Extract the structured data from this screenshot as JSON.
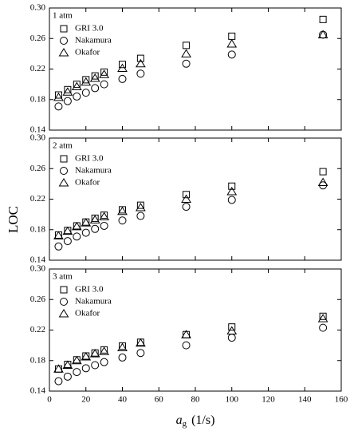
{
  "chart_data": [
    {
      "type": "scatter",
      "annotation": "1 atm",
      "xlim": [
        0,
        160
      ],
      "xticks": [
        0,
        20,
        40,
        60,
        80,
        100,
        120,
        140,
        160
      ],
      "ylim": [
        0.14,
        0.3
      ],
      "yticks": [
        0.14,
        0.18,
        0.22,
        0.26,
        {
          "value": 0.3,
          "label": "0.30"
        }
      ],
      "legend": "upper left",
      "series": [
        {
          "name": "GRI 3.0",
          "marker": "square",
          "color": "#000000",
          "x": [
            5,
            10,
            15,
            20,
            25,
            30,
            40,
            50,
            75,
            100,
            150
          ],
          "values": [
            0.186,
            0.193,
            0.2,
            0.206,
            0.211,
            0.216,
            0.226,
            0.234,
            0.251,
            0.263,
            0.285
          ]
        },
        {
          "name": "Nakamura",
          "marker": "circle",
          "color": "#000000",
          "x": [
            5,
            10,
            15,
            20,
            25,
            30,
            40,
            50,
            75,
            100,
            150
          ],
          "values": [
            0.171,
            0.178,
            0.184,
            0.189,
            0.195,
            0.2,
            0.207,
            0.214,
            0.227,
            0.239,
            0.265
          ]
        },
        {
          "name": "Okafor",
          "marker": "triangle",
          "color": "#000000",
          "x": [
            5,
            10,
            15,
            20,
            25,
            30,
            40,
            50,
            75,
            100,
            150
          ],
          "values": [
            0.183,
            0.19,
            0.197,
            0.203,
            0.208,
            0.213,
            0.221,
            0.227,
            0.24,
            0.253,
            0.265
          ]
        }
      ]
    },
    {
      "type": "scatter",
      "annotation": "2 atm",
      "ylabel": "LOC",
      "xlim": [
        0,
        160
      ],
      "xticks": [
        0,
        20,
        40,
        60,
        80,
        100,
        120,
        140,
        160
      ],
      "ylim": [
        0.14,
        0.3
      ],
      "yticks": [
        0.14,
        0.18,
        0.22,
        0.26,
        {
          "value": 0.3,
          "label": "0.30"
        }
      ],
      "legend": "upper left",
      "series": [
        {
          "name": "GRI 3.0",
          "marker": "square",
          "color": "#000000",
          "x": [
            5,
            10,
            15,
            20,
            25,
            30,
            40,
            50,
            75,
            100,
            150
          ],
          "values": [
            0.173,
            0.179,
            0.185,
            0.19,
            0.195,
            0.199,
            0.206,
            0.212,
            0.226,
            0.237,
            0.256
          ]
        },
        {
          "name": "Nakamura",
          "marker": "circle",
          "color": "#000000",
          "x": [
            5,
            10,
            15,
            20,
            25,
            30,
            40,
            50,
            75,
            100,
            150
          ],
          "values": [
            0.158,
            0.165,
            0.171,
            0.176,
            0.181,
            0.185,
            0.192,
            0.198,
            0.21,
            0.219,
            0.238
          ]
        },
        {
          "name": "Okafor",
          "marker": "triangle",
          "color": "#000000",
          "x": [
            5,
            10,
            15,
            20,
            25,
            30,
            40,
            50,
            75,
            100,
            150
          ],
          "values": [
            0.172,
            0.178,
            0.184,
            0.189,
            0.193,
            0.197,
            0.204,
            0.209,
            0.22,
            0.23,
            0.242
          ]
        }
      ]
    },
    {
      "type": "scatter",
      "annotation": "3 atm",
      "xlabel": "a",
      "xlabel_sub": "g",
      "xlabel_unit": "(1/s)",
      "xlim": [
        0,
        160
      ],
      "xticks": [
        0,
        20,
        40,
        60,
        80,
        100,
        120,
        140,
        160
      ],
      "ylim": [
        0.14,
        0.3
      ],
      "yticks": [
        0.14,
        0.18,
        0.22,
        0.26,
        {
          "value": 0.3,
          "label": "0.30"
        }
      ],
      "legend": "upper left",
      "series": [
        {
          "name": "GRI 3.0",
          "marker": "square",
          "color": "#000000",
          "x": [
            5,
            10,
            15,
            20,
            25,
            30,
            40,
            50,
            75,
            100,
            150
          ],
          "values": [
            0.169,
            0.175,
            0.181,
            0.186,
            0.19,
            0.194,
            0.199,
            0.204,
            0.214,
            0.224,
            0.238
          ]
        },
        {
          "name": "Nakamura",
          "marker": "circle",
          "color": "#000000",
          "x": [
            5,
            10,
            15,
            20,
            25,
            30,
            40,
            50,
            75,
            100,
            150
          ],
          "values": [
            0.153,
            0.159,
            0.165,
            0.17,
            0.174,
            0.178,
            0.184,
            0.19,
            0.2,
            0.21,
            0.223
          ]
        },
        {
          "name": "Okafor",
          "marker": "triangle",
          "color": "#000000",
          "x": [
            5,
            10,
            15,
            20,
            25,
            30,
            40,
            50,
            75,
            100,
            150
          ],
          "values": [
            0.169,
            0.174,
            0.18,
            0.185,
            0.189,
            0.192,
            0.197,
            0.203,
            0.214,
            0.219,
            0.235
          ]
        }
      ]
    }
  ]
}
